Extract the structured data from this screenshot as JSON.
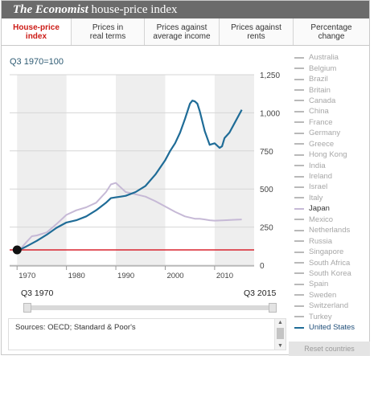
{
  "header": {
    "brand": "The Economist",
    "title": "house-price index"
  },
  "tabs": [
    {
      "label": "House-price\nindex",
      "active": true
    },
    {
      "label": "Prices in\nreal terms",
      "active": false
    },
    {
      "label": "Prices against\naverage income",
      "active": false
    },
    {
      "label": "Prices against\nrents",
      "active": false
    },
    {
      "label": "Percentage\nchange",
      "active": false
    }
  ],
  "chart": {
    "y_label": "Q3 1970=100"
  },
  "chart_data": {
    "type": "line",
    "x_range": [
      1968.5,
      2018
    ],
    "ylim": [
      0,
      1250
    ],
    "y_ticks": [
      "1,250",
      "1,000",
      "750",
      "500",
      "250",
      "0"
    ],
    "x_ticks": [
      "1970",
      "1980",
      "1990",
      "2000",
      "2010"
    ],
    "baseline": 100,
    "colors": {
      "us": "#1f6c97",
      "japan": "#c6b9d6",
      "baseline": "#d9232e",
      "band": "#eeeeee"
    },
    "series": [
      {
        "name": "United States",
        "x": [
          1970.5,
          1972,
          1974,
          1976,
          1978,
          1980,
          1982,
          1984,
          1986,
          1988,
          1989,
          1990,
          1991,
          1992,
          1994,
          1996,
          1998,
          2000,
          2001,
          2002,
          2003,
          2004,
          2005,
          2005.5,
          2006,
          2006.5,
          2007,
          2008,
          2009,
          2010,
          2011,
          2011.5,
          2012,
          2013,
          2014,
          2015.5
        ],
        "values": [
          100,
          125,
          160,
          200,
          245,
          280,
          295,
          320,
          360,
          410,
          440,
          445,
          450,
          455,
          480,
          520,
          595,
          690,
          750,
          800,
          870,
          960,
          1060,
          1080,
          1075,
          1060,
          1010,
          880,
          790,
          800,
          770,
          780,
          835,
          870,
          930,
          1020
        ]
      },
      {
        "name": "Japan",
        "x": [
          1970.5,
          1972,
          1973,
          1974,
          1976,
          1978,
          1980,
          1982,
          1984,
          1986,
          1988,
          1989,
          1990,
          1991,
          1992,
          1994,
          1996,
          1998,
          2000,
          2002,
          2004,
          2006,
          2007,
          2008,
          2009,
          2010,
          2012,
          2014,
          2015.5
        ],
        "values": [
          100,
          155,
          190,
          195,
          215,
          270,
          330,
          360,
          380,
          410,
          480,
          530,
          540,
          510,
          480,
          465,
          450,
          420,
          385,
          350,
          320,
          305,
          305,
          300,
          295,
          292,
          295,
          298,
          300
        ]
      }
    ]
  },
  "legend": [
    "Australia",
    "Belgium",
    "Brazil",
    "Britain",
    "Canada",
    "China",
    "France",
    "Germany",
    "Greece",
    "Hong Kong",
    "India",
    "Ireland",
    "Israel",
    "Italy",
    "Japan",
    "Mexico",
    "Netherlands",
    "Russia",
    "Singapore",
    "South Africa",
    "South Korea",
    "Spain",
    "Sweden",
    "Switzerland",
    "Turkey",
    "United States"
  ],
  "range": {
    "start": "Q3 1970",
    "end": "Q3 2015"
  },
  "sources": "Sources: OECD; Standard & Poor's",
  "reset_label": "Reset countries"
}
